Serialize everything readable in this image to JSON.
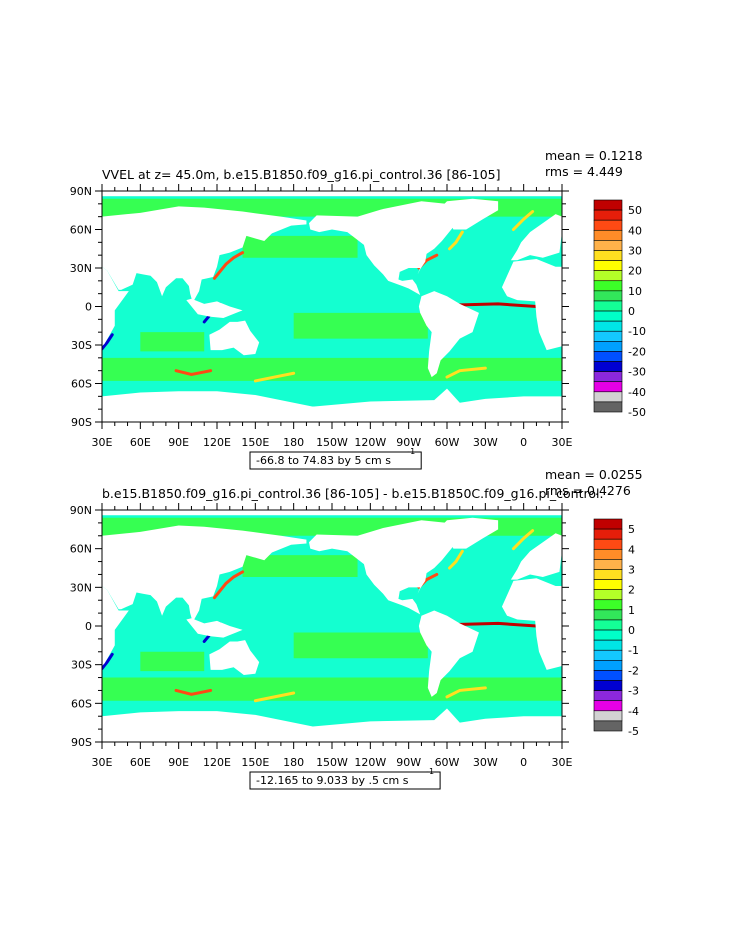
{
  "chart_data": [
    {
      "type": "heatmap",
      "title": "VVEL at z=  45.0m, b.e15.B1850.f09_g16.pi_control.36 [86-105]",
      "stats": {
        "mean": "mean = 0.1218",
        "rms": "rms = 4.449"
      },
      "x_ticks": [
        "30E",
        "60E",
        "90E",
        "120E",
        "150E",
        "180",
        "150W",
        "120W",
        "90W",
        "60W",
        "30W",
        "0",
        "30E"
      ],
      "y_ticks": [
        "90N",
        "60N",
        "30N",
        "0",
        "30S",
        "60S",
        "90S"
      ],
      "xlim": [
        30,
        390
      ],
      "ylim": [
        -90,
        90
      ],
      "range_label": "-66.8 to 74.83 by 5 cm s",
      "range_unit_sup": "-1",
      "colorbar": {
        "labels": [
          "50",
          "40",
          "30",
          "20",
          "10",
          "0",
          "-10",
          "-20",
          "-30",
          "-40",
          "-50"
        ],
        "colors": [
          "#c00000",
          "#e61e0a",
          "#ff4a14",
          "#ff8c28",
          "#ffb24a",
          "#ffe020",
          "#ffff00",
          "#b4ff28",
          "#3cff28",
          "#32e65a",
          "#14ff96",
          "#00ffc8",
          "#00e6e6",
          "#14c8ff",
          "#00a0ff",
          "#0050ff",
          "#0000d2",
          "#8c28dc",
          "#e600e6",
          "#d2d2d2",
          "#646464"
        ]
      },
      "field": {
        "ocean_base": "#14ffd0",
        "positive_zone": "#3cff3c",
        "hotspot_colors": [
          "#ff4a14",
          "#ffe020",
          "#0000d2",
          "#c00000"
        ],
        "land_color": "#ffffff"
      }
    },
    {
      "type": "heatmap",
      "title": "b.e15.B1850.f09_g16.pi_control.36 [86-105] - b.e15.B1850C.f09_g16.pi_control.",
      "stats": {
        "mean": "mean = 0.0255",
        "rms": "rms = 0.4276"
      },
      "x_ticks": [
        "30E",
        "60E",
        "90E",
        "120E",
        "150E",
        "180",
        "150W",
        "120W",
        "90W",
        "60W",
        "30W",
        "0",
        "30E"
      ],
      "y_ticks": [
        "90N",
        "60N",
        "30N",
        "0",
        "30S",
        "60S",
        "90S"
      ],
      "xlim": [
        30,
        390
      ],
      "ylim": [
        -90,
        90
      ],
      "range_label": "-12.165 to 9.033 by .5 cm s",
      "range_unit_sup": "-1",
      "colorbar": {
        "labels": [
          "5",
          "4",
          "3",
          "2",
          "1",
          "0",
          "-1",
          "-2",
          "-3",
          "-4",
          "-5"
        ],
        "colors": [
          "#c00000",
          "#e61e0a",
          "#ff4a14",
          "#ff8c28",
          "#ffb24a",
          "#ffe020",
          "#ffff00",
          "#b4ff28",
          "#3cff28",
          "#32e65a",
          "#14ff96",
          "#00ffc8",
          "#00e6e6",
          "#14c8ff",
          "#00a0ff",
          "#0050ff",
          "#0000d2",
          "#8c28dc",
          "#e600e6",
          "#d2d2d2",
          "#646464"
        ]
      },
      "field": {
        "ocean_base": "#14ffd0",
        "positive_zone": "#3cff3c",
        "hotspot_colors": [
          "#ff4a14",
          "#ffe020",
          "#0000d2",
          "#c00000"
        ],
        "land_color": "#ffffff"
      }
    }
  ]
}
